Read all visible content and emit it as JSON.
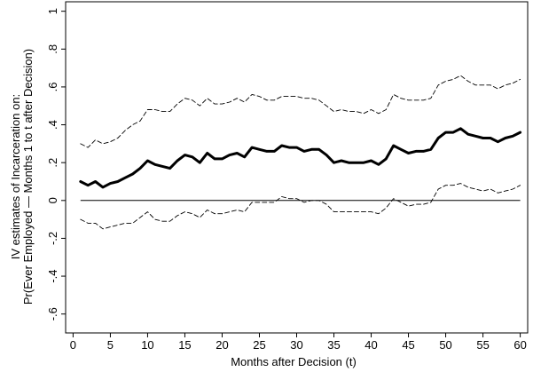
{
  "chart_data": {
    "type": "line",
    "title": "",
    "xlabel": "Months after Decision (t)",
    "ylabel_line1": "IV estimates of Incarceration on:",
    "ylabel_line2": "Pr(Ever Employed — Months 1 to t after Decision)",
    "xlim": [
      0,
      60
    ],
    "ylim": [
      -0.6,
      1.0
    ],
    "xticks": [
      0,
      5,
      10,
      15,
      20,
      25,
      30,
      35,
      40,
      45,
      50,
      55,
      60
    ],
    "xtick_labels": [
      "0",
      "5",
      "10",
      "15",
      "20",
      "25",
      "30",
      "35",
      "40",
      "45",
      "50",
      "55",
      "60"
    ],
    "yticks": [
      -0.6,
      -0.4,
      -0.2,
      0,
      0.2,
      0.4,
      0.6,
      0.8,
      1.0
    ],
    "ytick_labels": [
      "-.6",
      "-.4",
      "-.2",
      "0",
      ".2",
      ".4",
      ".6",
      ".8",
      "1"
    ],
    "zero_line": 0,
    "grid": false,
    "legend": "none",
    "x": [
      1,
      2,
      3,
      4,
      5,
      6,
      7,
      8,
      9,
      10,
      11,
      12,
      13,
      14,
      15,
      16,
      17,
      18,
      19,
      20,
      21,
      22,
      23,
      24,
      25,
      26,
      27,
      28,
      29,
      30,
      31,
      32,
      33,
      34,
      35,
      36,
      37,
      38,
      39,
      40,
      41,
      42,
      43,
      44,
      45,
      46,
      47,
      48,
      49,
      50,
      51,
      52,
      53,
      54,
      55,
      56,
      57,
      58,
      59,
      60
    ],
    "series": [
      {
        "style": "solid-thick",
        "color": "#000000",
        "values": [
          0.1,
          0.08,
          0.1,
          0.07,
          0.09,
          0.1,
          0.12,
          0.14,
          0.17,
          0.21,
          0.19,
          0.18,
          0.17,
          0.21,
          0.24,
          0.23,
          0.2,
          0.25,
          0.22,
          0.22,
          0.24,
          0.25,
          0.23,
          0.28,
          0.27,
          0.26,
          0.26,
          0.29,
          0.28,
          0.28,
          0.26,
          0.27,
          0.27,
          0.24,
          0.2,
          0.21,
          0.2,
          0.2,
          0.2,
          0.21,
          0.19,
          0.22,
          0.29,
          0.27,
          0.25,
          0.26,
          0.26,
          0.27,
          0.33,
          0.36,
          0.36,
          0.38,
          0.35,
          0.34,
          0.33,
          0.33,
          0.31,
          0.33,
          0.34,
          0.36
        ]
      },
      {
        "style": "dashed",
        "color": "#000000",
        "values": [
          0.3,
          0.28,
          0.32,
          0.3,
          0.31,
          0.33,
          0.37,
          0.4,
          0.42,
          0.48,
          0.48,
          0.47,
          0.47,
          0.51,
          0.54,
          0.53,
          0.5,
          0.54,
          0.51,
          0.51,
          0.52,
          0.54,
          0.52,
          0.56,
          0.55,
          0.53,
          0.53,
          0.55,
          0.55,
          0.55,
          0.54,
          0.54,
          0.53,
          0.5,
          0.47,
          0.48,
          0.47,
          0.47,
          0.46,
          0.48,
          0.46,
          0.48,
          0.56,
          0.54,
          0.53,
          0.53,
          0.53,
          0.54,
          0.61,
          0.63,
          0.64,
          0.66,
          0.63,
          0.61,
          0.61,
          0.61,
          0.59,
          0.61,
          0.62,
          0.64
        ]
      },
      {
        "style": "dashed",
        "color": "#000000",
        "values": [
          -0.1,
          -0.12,
          -0.12,
          -0.15,
          -0.14,
          -0.13,
          -0.12,
          -0.12,
          -0.09,
          -0.06,
          -0.1,
          -0.11,
          -0.11,
          -0.08,
          -0.06,
          -0.07,
          -0.09,
          -0.05,
          -0.07,
          -0.07,
          -0.06,
          -0.05,
          -0.06,
          -0.01,
          -0.01,
          -0.01,
          -0.01,
          0.02,
          0.01,
          0.01,
          -0.01,
          0.0,
          0.0,
          -0.02,
          -0.06,
          -0.06,
          -0.06,
          -0.06,
          -0.06,
          -0.06,
          -0.07,
          -0.04,
          0.01,
          -0.01,
          -0.03,
          -0.02,
          -0.02,
          -0.01,
          0.06,
          0.08,
          0.08,
          0.09,
          0.07,
          0.06,
          0.05,
          0.06,
          0.04,
          0.05,
          0.06,
          0.08
        ]
      }
    ]
  }
}
